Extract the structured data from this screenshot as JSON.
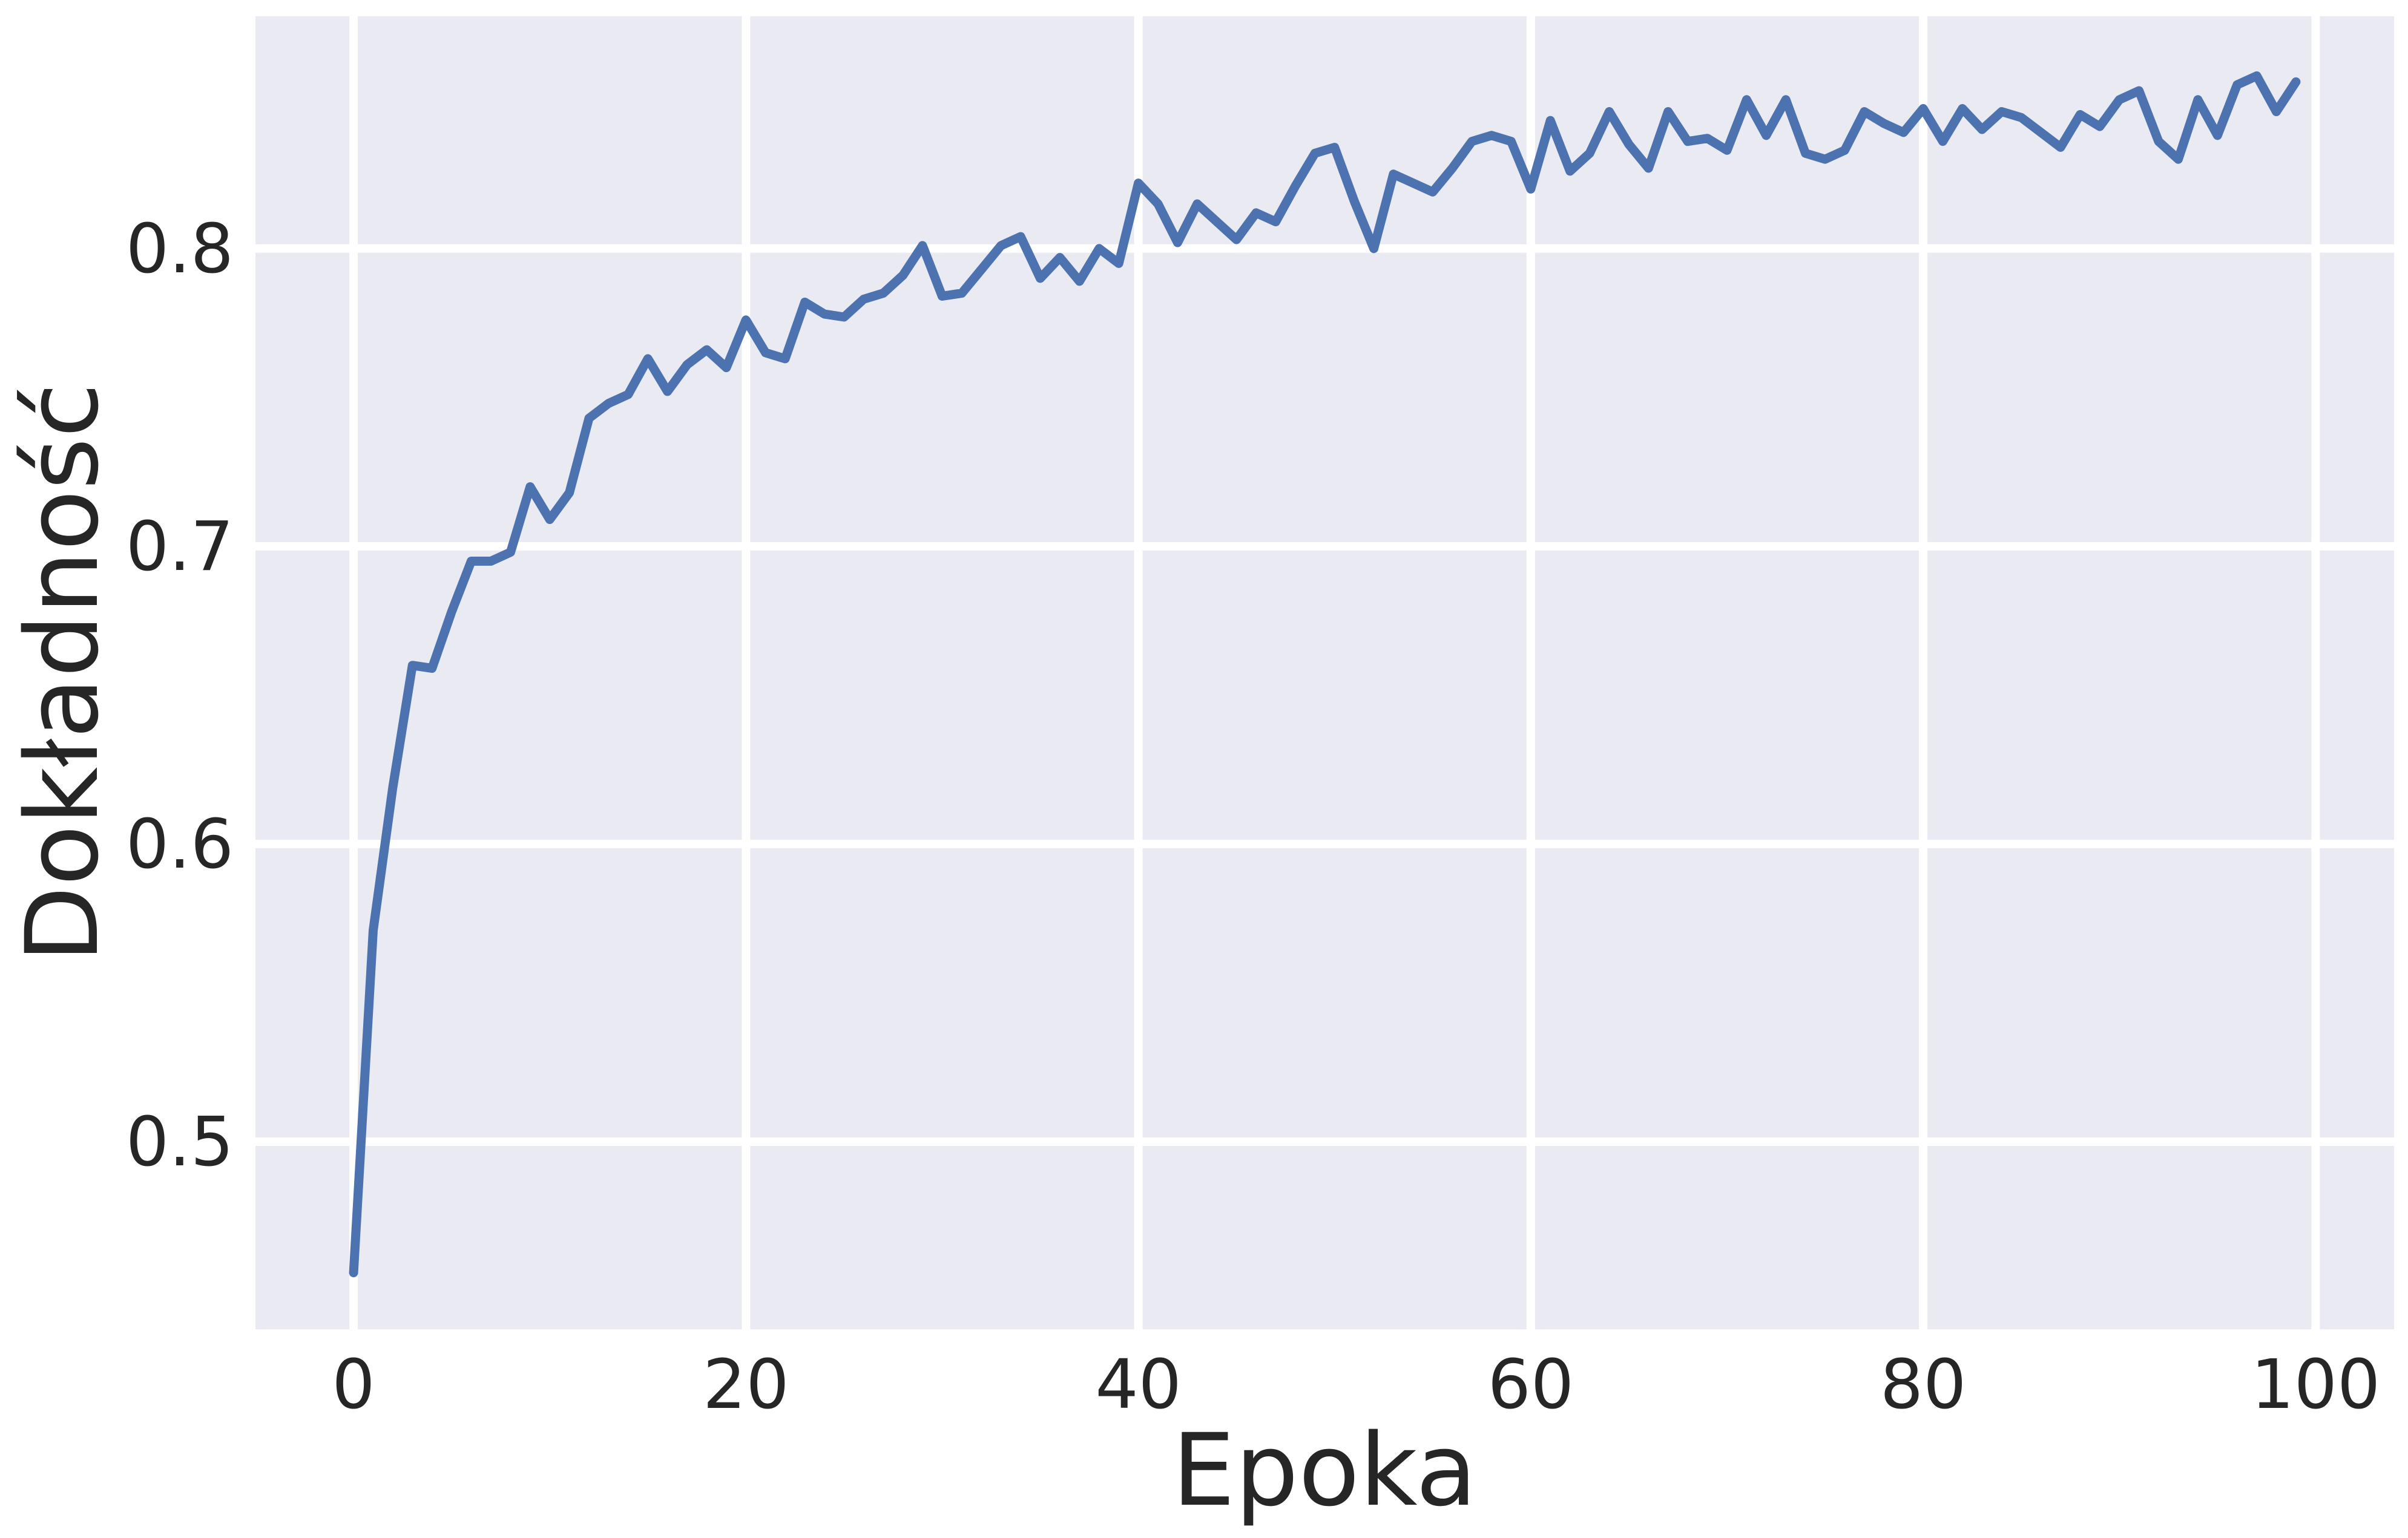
{
  "chart_data": {
    "type": "line",
    "title": "",
    "xlabel": "Epoka",
    "ylabel": "Dokładność",
    "xlim": [
      -5,
      104
    ],
    "ylim": [
      0.437,
      0.878
    ],
    "xticks": [
      0,
      20,
      40,
      60,
      80,
      100
    ],
    "yticks": [
      0.5,
      0.6,
      0.7,
      0.8
    ],
    "xtick_labels": [
      "0",
      "20",
      "40",
      "60",
      "80",
      "100"
    ],
    "ytick_labels": [
      "0.5",
      "0.6",
      "0.7",
      "0.8"
    ],
    "grid": true,
    "legend": "none",
    "colors": {
      "background": "#eaeaf2",
      "grid": "#ffffff",
      "line": "#4c72b0",
      "text": "#262626"
    },
    "series": [
      {
        "x": [
          0,
          1,
          2,
          3,
          4,
          5,
          6,
          7,
          8,
          9,
          10,
          11,
          12,
          13,
          14,
          15,
          16,
          17,
          18,
          19,
          20,
          21,
          22,
          23,
          24,
          25,
          26,
          27,
          28,
          29,
          30,
          31,
          32,
          33,
          34,
          35,
          36,
          37,
          38,
          39,
          40,
          41,
          42,
          43,
          44,
          45,
          46,
          47,
          48,
          49,
          50,
          51,
          52,
          53,
          54,
          55,
          56,
          57,
          58,
          59,
          60,
          61,
          62,
          63,
          64,
          65,
          66,
          67,
          68,
          69,
          70,
          71,
          72,
          73,
          74,
          75,
          76,
          77,
          78,
          79,
          80,
          81,
          82,
          83,
          84,
          85,
          86,
          87,
          88,
          89,
          90,
          91,
          92,
          93,
          94,
          95,
          96,
          97,
          98,
          99
        ],
        "values": [
          0.456,
          0.571,
          0.619,
          0.66,
          0.659,
          0.678,
          0.695,
          0.695,
          0.698,
          0.72,
          0.709,
          0.718,
          0.743,
          0.748,
          0.751,
          0.763,
          0.752,
          0.761,
          0.766,
          0.76,
          0.776,
          0.765,
          0.763,
          0.782,
          0.778,
          0.777,
          0.783,
          0.785,
          0.791,
          0.801,
          0.784,
          0.785,
          0.793,
          0.801,
          0.804,
          0.79,
          0.797,
          0.789,
          0.8,
          0.795,
          0.822,
          0.815,
          0.802,
          0.815,
          0.809,
          0.803,
          0.812,
          0.809,
          0.821,
          0.832,
          0.834,
          0.816,
          0.8,
          0.825,
          0.822,
          0.819,
          0.827,
          0.836,
          0.838,
          0.836,
          0.82,
          0.843,
          0.826,
          0.832,
          0.846,
          0.835,
          0.827,
          0.846,
          0.836,
          0.837,
          0.833,
          0.85,
          0.838,
          0.85,
          0.832,
          0.83,
          0.833,
          0.846,
          0.842,
          0.839,
          0.847,
          0.836,
          0.847,
          0.84,
          0.846,
          0.844,
          0.839,
          0.834,
          0.845,
          0.841,
          0.85,
          0.853,
          0.836,
          0.83,
          0.85,
          0.838,
          0.855,
          0.858,
          0.846,
          0.856
        ]
      }
    ]
  }
}
